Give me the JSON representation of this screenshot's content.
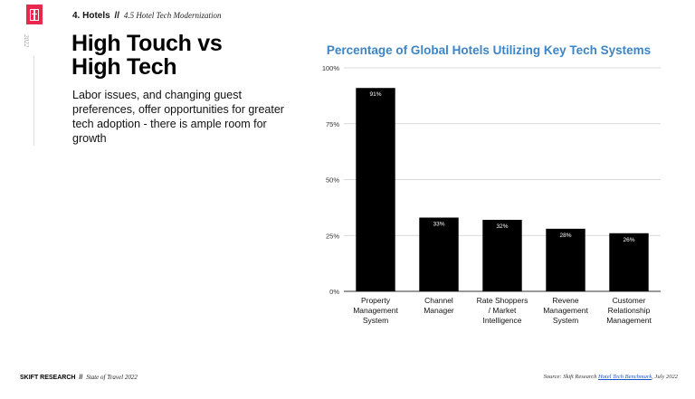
{
  "brand": {
    "logo_icon": "skift-logo-icon",
    "accent_color": "#e8284c",
    "year_vertical": "2022"
  },
  "header": {
    "section_number": "4. Hotels",
    "separator": "//",
    "section_sub": "4.5 Hotel Tech Modernization"
  },
  "headline": {
    "line1": "High Touch vs",
    "line2": "High Tech"
  },
  "body_text": "Labor issues, and changing guest preferences, offer opportunities for greater tech adoption - there is ample room for growth",
  "footer": {
    "brand": "SKIFT RESEARCH",
    "separator": "//",
    "report": "State of Travel 2022",
    "source_prefix": "Source: Skift Research",
    "source_link": "Hotel Tech Benchmark",
    "source_suffix": ", July 2022"
  },
  "chart_data": {
    "type": "bar",
    "title": "Percentage of Global Hotels Utilizing Key Tech Systems",
    "xlabel": "",
    "ylabel": "",
    "ylim": [
      0,
      100
    ],
    "yticks": [
      0,
      25,
      50,
      75,
      100
    ],
    "ytick_labels": [
      "0%",
      "25%",
      "50%",
      "75%",
      "100%"
    ],
    "grid": true,
    "bar_color": "#000000",
    "title_color": "#3d85c6",
    "categories": [
      [
        "Property",
        "Management",
        "System"
      ],
      [
        "Channel",
        "Manager"
      ],
      [
        "Rate Shoppers",
        "/ Market",
        "Intelligence"
      ],
      [
        "Revene",
        "Management",
        "System"
      ],
      [
        "Customer",
        "Relationship",
        "Management"
      ]
    ],
    "values": [
      91,
      33,
      32,
      28,
      26
    ],
    "value_labels": [
      "91%",
      "33%",
      "32%",
      "28%",
      "26%"
    ]
  }
}
